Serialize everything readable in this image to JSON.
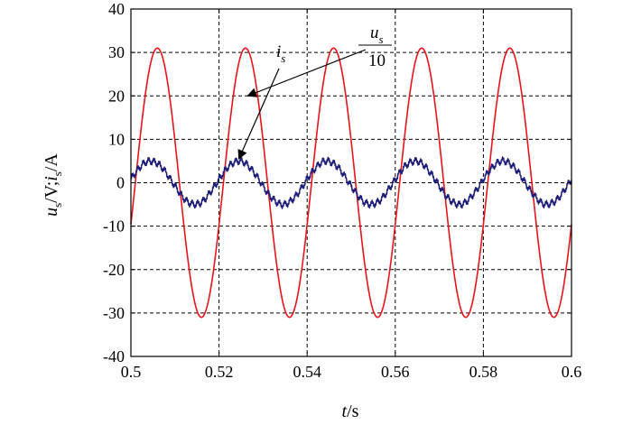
{
  "chart_data": {
    "type": "line",
    "title": "",
    "xlabel": {
      "var": "t",
      "unit": "/s"
    },
    "ylabel": {
      "var1": "u",
      "sub1": "s",
      "mid": "/V;",
      "var2": "i",
      "sub2": "s",
      "unit": "/A"
    },
    "xlim": [
      0.5,
      0.6
    ],
    "ylim": [
      -40,
      40
    ],
    "xticks": [
      0.5,
      0.52,
      0.54,
      0.56,
      0.58,
      0.6
    ],
    "xtick_labels": [
      "0.5",
      "0.52",
      "0.54",
      "0.56",
      "0.58",
      "0.6"
    ],
    "yticks": [
      -40,
      -30,
      -20,
      -10,
      0,
      10,
      20,
      30,
      40
    ],
    "ytick_labels": [
      "-40",
      "-30",
      "-20",
      "-10",
      "0",
      "10",
      "20",
      "30",
      "40"
    ],
    "grid": true,
    "grid_style": "dashed",
    "series": [
      {
        "name_var": "u",
        "name_sub": "s",
        "name_scale": "10",
        "color": "#e8141c",
        "function": "sine",
        "amplitude": 31,
        "frequency_hz": 50,
        "peak_time": 0.506
      },
      {
        "name_var": "i",
        "name_sub": "s",
        "color": "#1f1f7a",
        "function": "sine",
        "amplitude": 5,
        "frequency_hz": 50,
        "peak_time": 0.5045
      }
    ],
    "annotations": [
      {
        "series": 0,
        "arrow_to": [
          0.5265,
          20
        ]
      },
      {
        "series": 1,
        "arrow_to": [
          0.5245,
          5.5
        ]
      }
    ]
  }
}
